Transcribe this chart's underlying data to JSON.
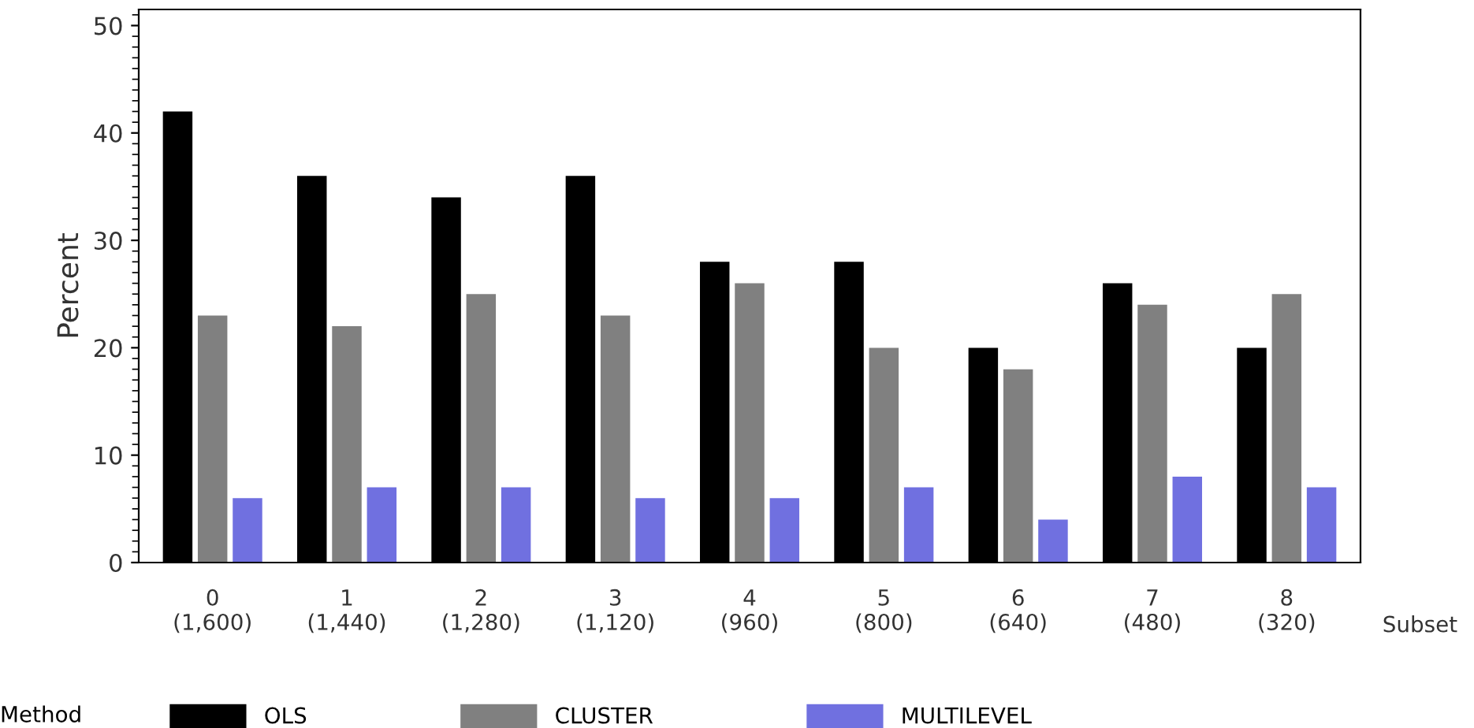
{
  "chart_data": {
    "type": "bar",
    "categories": [
      "0\n(1,600)",
      "1\n(1,440)",
      "2\n(1,280)",
      "3\n(1,120)",
      "4\n(960)",
      "5\n(800)",
      "6\n(640)",
      "7\n(480)",
      "8\n(320)"
    ],
    "series": [
      {
        "name": "OLS",
        "color": "#000000",
        "values": [
          42,
          36,
          34,
          36,
          28,
          28,
          20,
          26,
          20
        ]
      },
      {
        "name": "CLUSTER",
        "color": "#808080",
        "values": [
          23,
          22,
          25,
          23,
          26,
          20,
          18,
          24,
          25
        ]
      },
      {
        "name": "MULTILEVEL",
        "color": "#7070e0",
        "values": [
          6,
          7,
          7,
          6,
          6,
          7,
          4,
          8,
          7
        ]
      }
    ],
    "xlabel": "Subset",
    "ylabel": "Percent",
    "legend_title": "Method",
    "ylim": [
      0,
      51.5
    ],
    "yticks": [
      0,
      10,
      20,
      30,
      40,
      50
    ],
    "grid": false,
    "legend": "bottom"
  }
}
